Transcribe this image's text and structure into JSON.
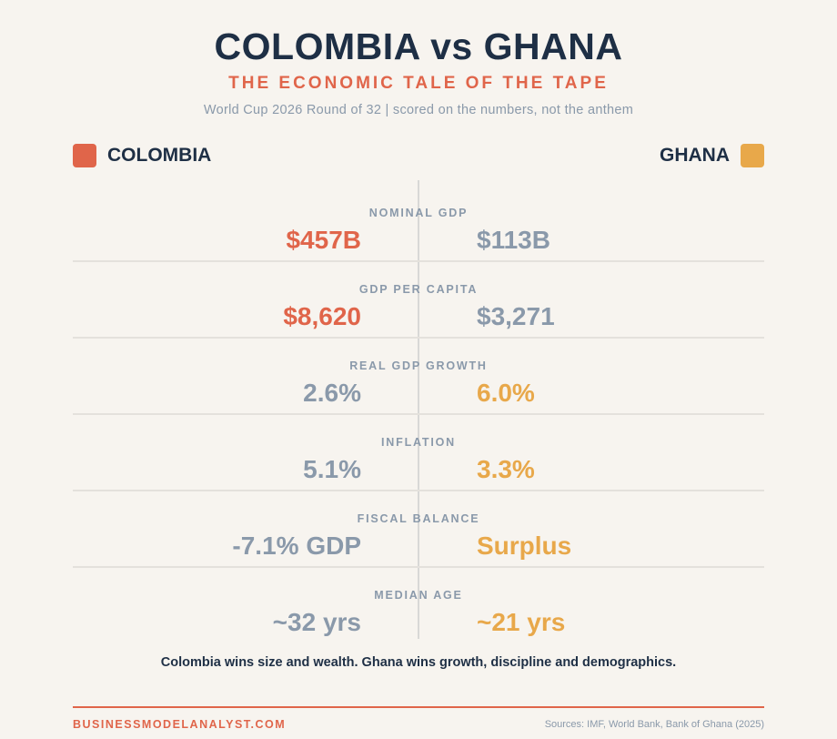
{
  "header": {
    "title": "COLOMBIA vs GHANA",
    "subtitle": "THE ECONOMIC TALE OF THE TAPE",
    "caption": "World Cup 2026 Round of 32 | scored on the numbers, not the anthem"
  },
  "teams": {
    "left": {
      "name": "COLOMBIA",
      "color": "#e0654a"
    },
    "right": {
      "name": "GHANA",
      "color": "#e8a84a"
    }
  },
  "colors": {
    "winner_left": "#e0654a",
    "winner_right": "#e8a84a",
    "loser": "#8a99aa"
  },
  "metrics": [
    {
      "label": "NOMINAL GDP",
      "left": "$457B",
      "right": "$113B",
      "winner": "left"
    },
    {
      "label": "GDP PER CAPITA",
      "left": "$8,620",
      "right": "$3,271",
      "winner": "left"
    },
    {
      "label": "REAL GDP GROWTH",
      "left": "2.6%",
      "right": "6.0%",
      "winner": "right"
    },
    {
      "label": "INFLATION",
      "left": "5.1%",
      "right": "3.3%",
      "winner": "right"
    },
    {
      "label": "FISCAL BALANCE",
      "left": "-7.1% GDP",
      "right": "Surplus",
      "winner": "right"
    },
    {
      "label": "MEDIAN AGE",
      "left": "~32 yrs",
      "right": "~21 yrs",
      "winner": "right"
    }
  ],
  "verdict": "Colombia wins size and wealth. Ghana wins growth, discipline and demographics.",
  "footer": {
    "brand": "BUSINESSMODELANALYST.COM",
    "sources": "Sources: IMF, World Bank, Bank of Ghana (2025)"
  }
}
